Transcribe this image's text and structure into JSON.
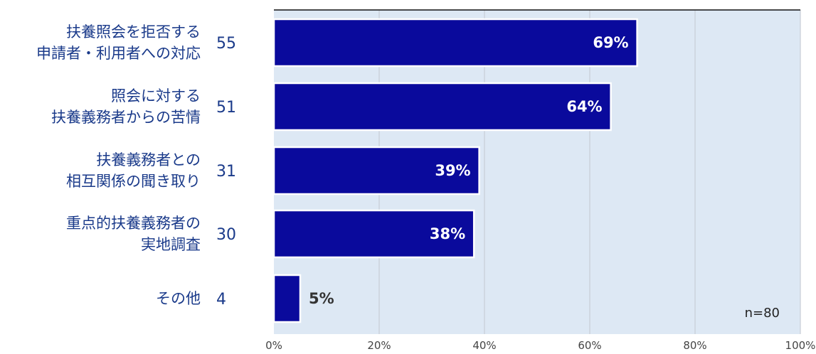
{
  "chart_data": {
    "type": "bar",
    "orientation": "horizontal",
    "categories": [
      [
        "扶養照会を拒否する",
        "申請者・利用者への対応"
      ],
      [
        "照会に対する",
        "扶養義務者からの苦情"
      ],
      [
        "扶養義務者との",
        "相互関係の聞き取り"
      ],
      [
        "重点的扶養義務者の",
        "実地調査"
      ],
      [
        "その他"
      ]
    ],
    "counts": [
      "55",
      "51",
      "31",
      "30",
      "4"
    ],
    "values": [
      69,
      64,
      39,
      38,
      5
    ],
    "value_labels": [
      "69%",
      "64%",
      "39%",
      "38%",
      "5%"
    ],
    "xlim": [
      0,
      100
    ],
    "x_ticks": [
      "0%",
      "20%",
      "40%",
      "60%",
      "80%",
      "100%"
    ],
    "note": "n=80",
    "grid": true,
    "colors": {
      "bar": "#0a0a9c",
      "plot_bg": "#dde8f4",
      "grid": "#c8cdd6",
      "inside_label": "#ffffff",
      "outside_label": "#333333",
      "category_text": "#1a3a8a"
    }
  }
}
